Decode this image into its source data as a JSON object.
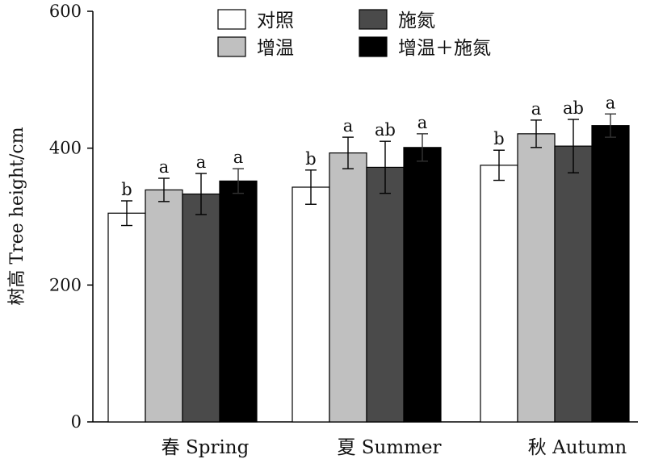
{
  "chart_data": {
    "type": "bar",
    "title": "",
    "xlabel": "",
    "ylabel": "树高 Tree height/cm",
    "ylim": [
      0,
      600
    ],
    "yticks": [
      0,
      200,
      400,
      600
    ],
    "grid": false,
    "legend_position": "top",
    "categories": [
      "春 Spring",
      "夏 Summer",
      "秋 Autumn"
    ],
    "series": [
      {
        "name": "对照",
        "color": "#ffffff",
        "values": [
          305,
          343,
          375
        ],
        "errors": [
          18,
          25,
          22
        ],
        "letters": [
          "b",
          "b",
          "b"
        ]
      },
      {
        "name": "增温",
        "color": "#c0c0c0",
        "values": [
          339,
          393,
          421
        ],
        "errors": [
          17,
          23,
          20
        ],
        "letters": [
          "a",
          "a",
          "a"
        ]
      },
      {
        "name": "施氮",
        "color": "#4a4a4a",
        "values": [
          333,
          372,
          403
        ],
        "errors": [
          30,
          38,
          39
        ],
        "letters": [
          "a",
          "ab",
          "ab"
        ]
      },
      {
        "name": "增温＋施氮",
        "color": "#000000",
        "values": [
          352,
          401,
          433
        ],
        "errors": [
          18,
          20,
          17
        ],
        "letters": [
          "a",
          "a",
          "a"
        ]
      }
    ]
  }
}
